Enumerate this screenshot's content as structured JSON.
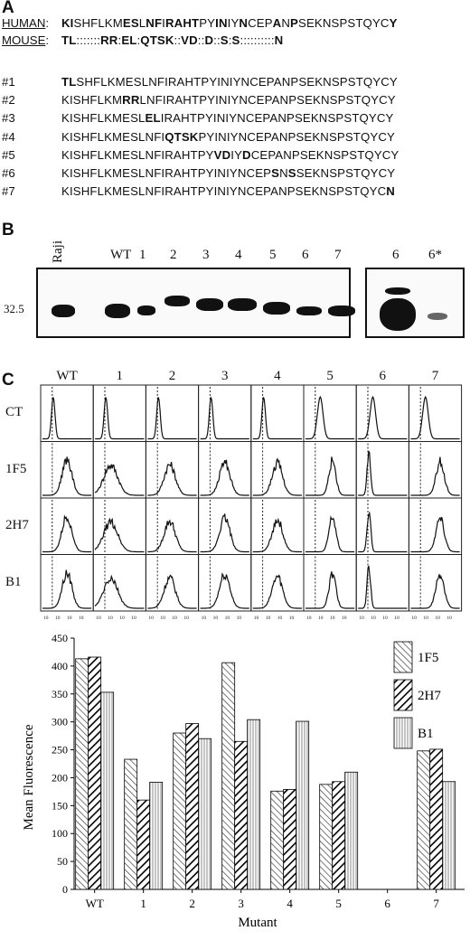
{
  "panel_a": {
    "letter": "A",
    "human_label": "HUMAN",
    "mouse_label": "MOUSE",
    "human_seq": [
      [
        "KI",
        1
      ],
      [
        "SHFLKM",
        0
      ],
      [
        "ES",
        1
      ],
      [
        "L",
        0
      ],
      [
        "NF",
        1
      ],
      [
        "I",
        0
      ],
      [
        "RAHT",
        1
      ],
      [
        "PY",
        0
      ],
      [
        "IN",
        1
      ],
      [
        "IY",
        0
      ],
      [
        "N",
        1
      ],
      [
        "CEP",
        0
      ],
      [
        "A",
        1
      ],
      [
        "N",
        0
      ],
      [
        "P",
        1
      ],
      [
        "SEKNSPSTQYC",
        0
      ],
      [
        "Y",
        1
      ]
    ],
    "mouse_seq": [
      [
        "TL",
        1
      ],
      [
        ":::::::",
        0
      ],
      [
        "RR",
        1
      ],
      [
        ":",
        0
      ],
      [
        "EL",
        1
      ],
      [
        ":",
        0
      ],
      [
        "QTSK",
        1
      ],
      [
        "::",
        0
      ],
      [
        "VD",
        1
      ],
      [
        "::",
        0
      ],
      [
        "D",
        1
      ],
      [
        "::",
        0
      ],
      [
        "S",
        1
      ],
      [
        ":",
        0
      ],
      [
        "S",
        1
      ],
      [
        "::::::::::",
        0
      ],
      [
        "N",
        1
      ]
    ],
    "mutants": [
      {
        "label": "#1",
        "seq": [
          [
            "TL",
            1
          ],
          [
            "SHFLKMESLNFIRAHTPYINIYNCEPANPSEKNSPSTQYCY",
            0
          ]
        ]
      },
      {
        "label": "#2",
        "seq": [
          [
            "KISHFLKM",
            0
          ],
          [
            "RR",
            1
          ],
          [
            "LNFIRAHTPYINIYNCEPANPSEKNSPSTQYCY",
            0
          ]
        ]
      },
      {
        "label": "#3",
        "seq": [
          [
            "KISHFLKMESL",
            0
          ],
          [
            "EL",
            1
          ],
          [
            "IRAHTPYINIYNCEPANPSEKNSPSTQYCY",
            0
          ]
        ]
      },
      {
        "label": "#4",
        "seq": [
          [
            "KISHFLKMESLNFI",
            0
          ],
          [
            "QTSK",
            1
          ],
          [
            "PYINIYNCEPANPSEKNSPSTQYCY",
            0
          ]
        ]
      },
      {
        "label": "#5",
        "seq": [
          [
            "KISHFLKMESLNFIRAHTPY",
            0
          ],
          [
            "VD",
            1
          ],
          [
            "IY",
            0
          ],
          [
            "D",
            1
          ],
          [
            "CEPANPSEKNSPSTQYCY",
            0
          ]
        ]
      },
      {
        "label": "#6",
        "seq": [
          [
            "KISHFLKMESLNFIRAHTPYINIYNCEP",
            0
          ],
          [
            "S",
            1
          ],
          [
            "N",
            0
          ],
          [
            "S",
            1
          ],
          [
            "SEKNSPSTQYCY",
            0
          ]
        ]
      },
      {
        "label": "#7",
        "seq": [
          [
            "KISHFLKMESLNFIRAHTPYINIYNCEPANPSEKNSPSTQYC",
            0
          ],
          [
            "N",
            1
          ]
        ]
      }
    ]
  },
  "panel_b": {
    "letter": "B",
    "marker": "32.5",
    "lanes_left": [
      "Raji",
      "WT",
      "1",
      "2",
      "3",
      "4",
      "5",
      "6",
      "7"
    ],
    "lanes_right": [
      "6",
      "6*"
    ]
  },
  "panel_c": {
    "letter": "C",
    "columns": [
      "WT",
      "1",
      "2",
      "3",
      "4",
      "5",
      "6",
      "7"
    ],
    "rows": [
      "CT",
      "1F5",
      "2H7",
      "B1"
    ]
  },
  "chart_data": {
    "type": "bar",
    "categories": [
      "WT",
      "1",
      "2",
      "3",
      "4",
      "5",
      "6",
      "7"
    ],
    "series": [
      {
        "name": "1F5",
        "values": [
          413,
          233,
          280,
          406,
          176,
          188,
          0,
          248
        ]
      },
      {
        "name": "2H7",
        "values": [
          416,
          160,
          297,
          265,
          179,
          193,
          0,
          251
        ]
      },
      {
        "name": "B1",
        "values": [
          353,
          192,
          270,
          304,
          301,
          210,
          0,
          193
        ]
      }
    ],
    "ylabel": "Mean Fluorescence",
    "xlabel": "Mutant",
    "ylim": [
      0,
      450
    ],
    "yticks": [
      0,
      50,
      100,
      150,
      200,
      250,
      300,
      350,
      400,
      450
    ],
    "legend": "top-right",
    "grid": false
  }
}
